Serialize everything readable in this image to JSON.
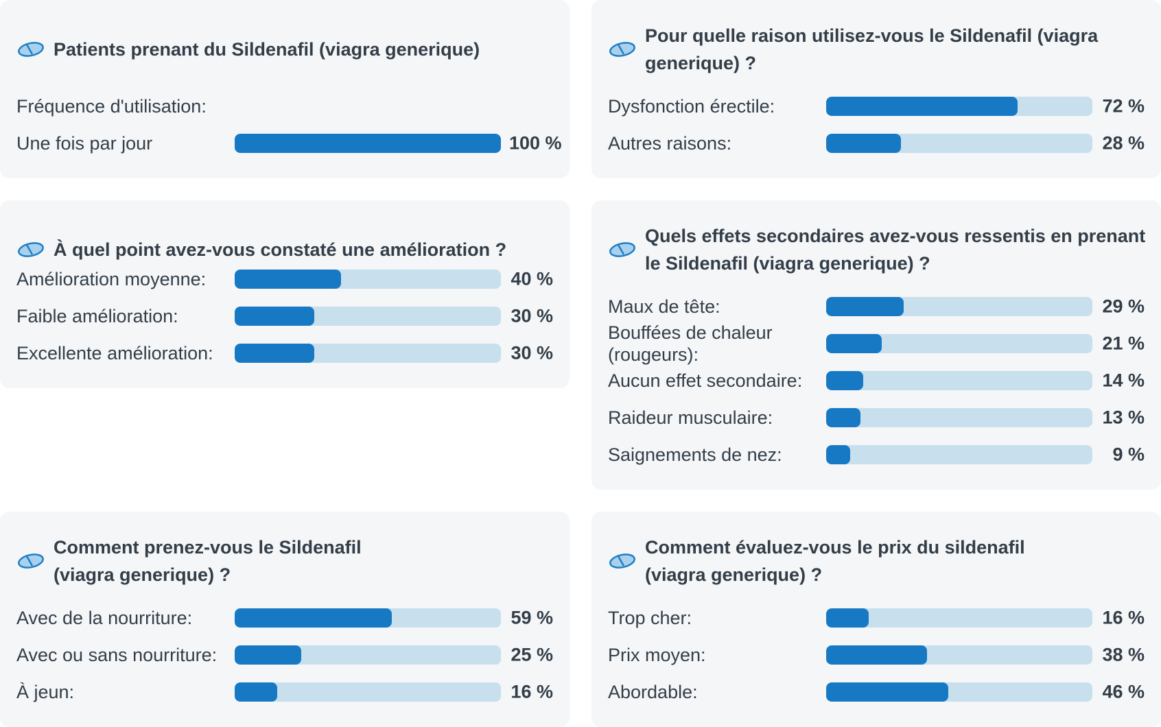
{
  "colors": {
    "card_bg": "#f4f6f8",
    "bar_fill": "#1779c4",
    "bar_track": "#c8dfed",
    "text": "#333e48",
    "icon": "pill-icon"
  },
  "chart_data": [
    {
      "type": "bar",
      "title": "Patients prenant du Sildenafil (viagra generique)",
      "subtitle": "Fréquence d'utilisation:",
      "categories": [
        "Une fois par jour"
      ],
      "values": [
        100
      ],
      "value_labels": [
        "100 %"
      ],
      "ylim": [
        0,
        100
      ]
    },
    {
      "type": "bar",
      "title": "Pour quelle raison utilisez-vous le Sildenafil (viagra generique) ?",
      "categories": [
        "Dysfonction érectile:",
        "Autres raisons:"
      ],
      "values": [
        72,
        28
      ],
      "value_labels": [
        "72 %",
        "28 %"
      ],
      "ylim": [
        0,
        100
      ]
    },
    {
      "type": "bar",
      "title": "À quel point avez-vous constaté une amélioration ?",
      "categories": [
        "Amélioration moyenne:",
        "Faible amélioration:",
        "Excellente amélioration:"
      ],
      "values": [
        40,
        30,
        30
      ],
      "value_labels": [
        "40 %",
        "30 %",
        "30 %"
      ],
      "ylim": [
        0,
        100
      ]
    },
    {
      "type": "bar",
      "title": "Quels effets secondaires avez-vous ressentis en prenant le Sildenafil (viagra generique) ?",
      "categories": [
        "Maux de tête:",
        "Bouffées de chaleur (rougeurs):",
        "Aucun effet secondaire:",
        "Raideur musculaire:",
        "Saignements de nez:"
      ],
      "values": [
        29,
        21,
        14,
        13,
        9
      ],
      "value_labels": [
        "29 %",
        "21 %",
        "14 %",
        "13 %",
        "9 %"
      ],
      "ylim": [
        0,
        100
      ]
    },
    {
      "type": "bar",
      "title": "Comment prenez-vous le Sildenafil (viagra generique) ?",
      "categories": [
        "Avec de la nourriture:",
        "Avec ou sans nourriture:",
        "À jeun:"
      ],
      "values": [
        59,
        25,
        16
      ],
      "value_labels": [
        "59 %",
        "25 %",
        "16 %"
      ],
      "ylim": [
        0,
        100
      ]
    },
    {
      "type": "bar",
      "title": "Comment évaluez-vous le prix du sildenafil (viagra generique) ?",
      "categories": [
        "Trop cher:",
        "Prix moyen:",
        "Abordable:"
      ],
      "values": [
        16,
        38,
        46
      ],
      "value_labels": [
        "16 %",
        "38 %",
        "46 %"
      ],
      "ylim": [
        0,
        100
      ]
    }
  ]
}
